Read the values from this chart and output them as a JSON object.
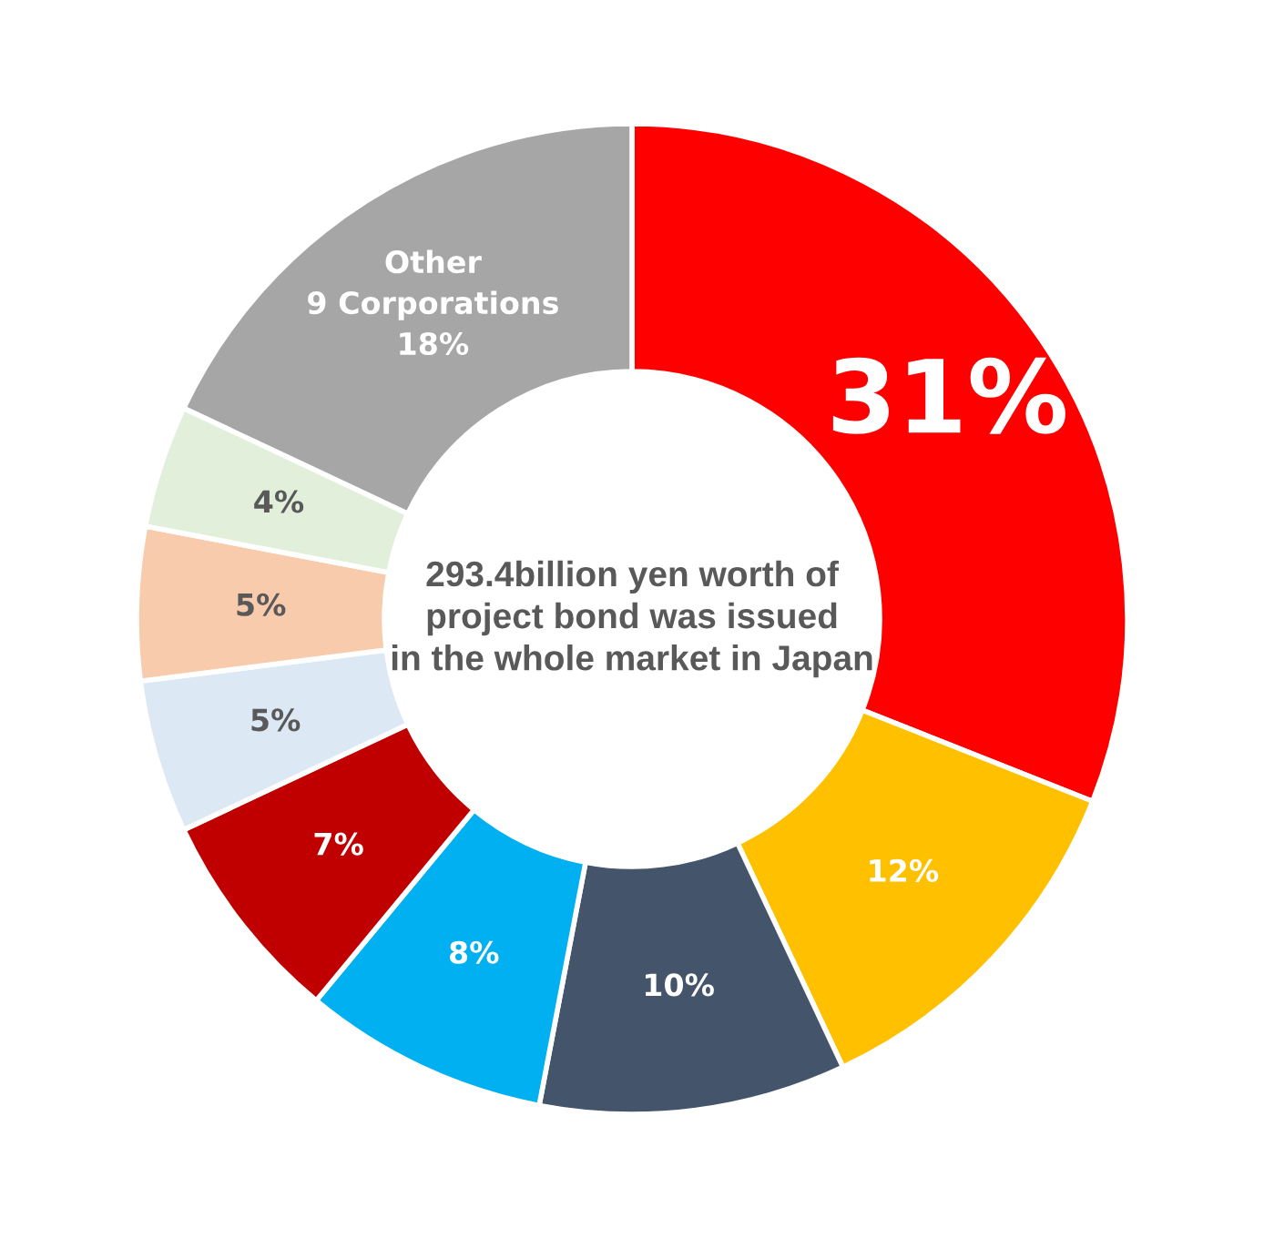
{
  "chart_data": {
    "type": "donut",
    "categories": [
      null,
      null,
      null,
      null,
      null,
      null,
      null,
      null,
      "Other\n9 Corporations"
    ],
    "values": [
      31,
      12,
      10,
      8,
      7,
      5,
      5,
      4,
      18
    ],
    "value_labels": [
      "31%",
      "12%",
      "10%",
      "8%",
      "7%",
      "5%",
      "5%",
      "4%",
      "18%"
    ],
    "colors": [
      "#ff0000",
      "#ffc000",
      "#44546a",
      "#00b0f0",
      "#c00000",
      "#dde8f5",
      "#f8cbad",
      "#e2efda",
      "#a6a6a6"
    ],
    "annotations": [
      "293.4billion yen worth of\nproject bond was issued\nin the whole market in Japan"
    ],
    "legend": false
  }
}
